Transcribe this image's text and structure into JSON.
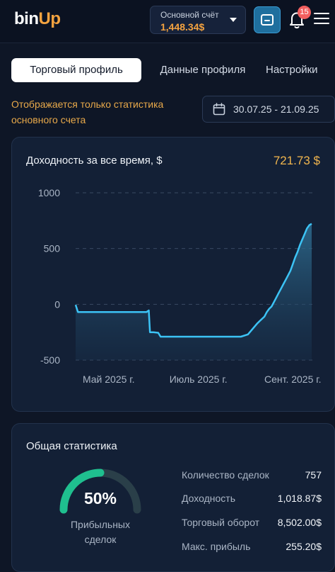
{
  "header": {
    "logo_left": "bin",
    "logo_right": "Up",
    "account_label": "Основной счёт",
    "account_balance": "1,448.34$",
    "notifications_count": "15"
  },
  "tabs": [
    {
      "label": "Торговый профиль"
    },
    {
      "label": "Данные профиля"
    },
    {
      "label": "Настройки"
    }
  ],
  "notice": "Отображается только статистика основного счета",
  "date_range": "30.07.25 - 21.09.25",
  "chart_card": {
    "title": "Доходность за все время, $",
    "total": "721.73 $"
  },
  "chart_data": {
    "type": "area",
    "title": "Доходность за все время, $",
    "ylim": [
      -500,
      1000
    ],
    "yticks": [
      "1000",
      "500",
      "0",
      "-500"
    ],
    "ytick_values": [
      1000,
      500,
      0,
      -500
    ],
    "xticks": [
      "Май 2025 г.",
      "Июль 2025 г.",
      "Сент. 2025 г."
    ],
    "xtick_positions": [
      0.14,
      0.52,
      0.92
    ],
    "grid": true,
    "line_color": "#3cc3f5",
    "series": [
      {
        "x": [
          0.0,
          0.01,
          0.05,
          0.1,
          0.15,
          0.2,
          0.25,
          0.3,
          0.31,
          0.315,
          0.33,
          0.35,
          0.36,
          0.4,
          0.5,
          0.6,
          0.7,
          0.73,
          0.75,
          0.77,
          0.78,
          0.8,
          0.81,
          0.82,
          0.83,
          0.84,
          0.85,
          0.86,
          0.87,
          0.88,
          0.89,
          0.9,
          0.91,
          0.92,
          0.93,
          0.94,
          0.95,
          0.96,
          0.97,
          0.98,
          0.99,
          1.0
        ],
        "y": [
          -5,
          -70,
          -70,
          -70,
          -70,
          -70,
          -70,
          -70,
          -55,
          -250,
          -250,
          -255,
          -290,
          -290,
          -290,
          -290,
          -290,
          -270,
          -220,
          -170,
          -150,
          -110,
          -70,
          -40,
          -20,
          20,
          60,
          100,
          140,
          180,
          220,
          260,
          300,
          360,
          420,
          470,
          530,
          580,
          630,
          680,
          710,
          722
        ]
      }
    ]
  },
  "stats": {
    "title": "Общая статистика",
    "win_rate": "50%",
    "win_rate_value": 0.5,
    "win_rate_label": "Прибыльных сделок",
    "rows": [
      {
        "label": "Количество сделок",
        "value": "757"
      },
      {
        "label": "Доходность",
        "value": "1,018.87$"
      },
      {
        "label": "Торговый оборот",
        "value": "8,502.00$"
      },
      {
        "label": "Макс. прибыль",
        "value": "255.20$"
      }
    ]
  }
}
